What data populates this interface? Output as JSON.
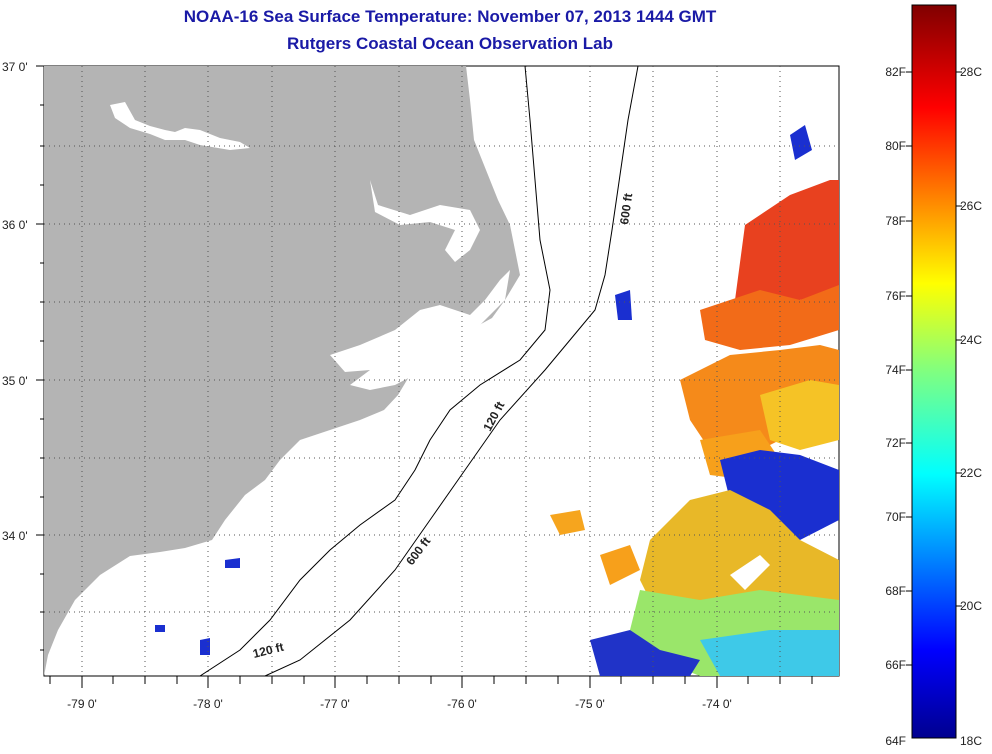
{
  "title": "NOAA-16 Sea Surface Temperature:  November 07, 2013 1444 GMT",
  "subtitle": "Rutgers Coastal Ocean Observation Lab",
  "lat_labels": [
    "37 0'",
    "36 0'",
    "35 0'",
    "34 0'"
  ],
  "lon_labels": [
    "-79 0'",
    "-78 0'",
    "-77 0'",
    "-76 0'",
    "-75 0'",
    "-74 0'"
  ],
  "contours": {
    "c120_upper": "120 ft",
    "c600_upper": "600 ft",
    "c600_lower": "600 ft",
    "c120_lower": "120 ft"
  },
  "colorbar": {
    "fahrenheit": [
      "82F",
      "80F",
      "78F",
      "76F",
      "74F",
      "72F",
      "70F",
      "68F",
      "66F",
      "64F"
    ],
    "celsius": [
      "28C",
      "26C",
      "24C",
      "22C",
      "20C",
      "18C"
    ]
  },
  "colors": {
    "land": "#b4b4b4",
    "title": "#1a1aa6",
    "grid": "#555555"
  }
}
